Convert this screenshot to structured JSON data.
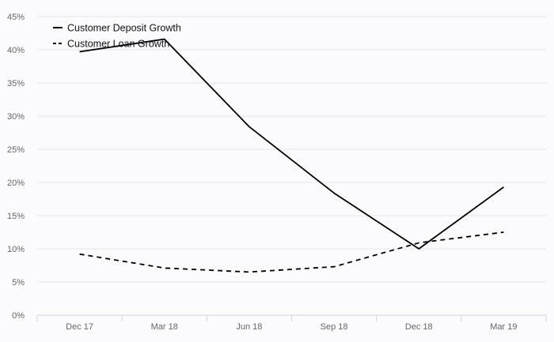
{
  "chart_data": {
    "type": "line",
    "categories": [
      "Dec 17",
      "Mar 18",
      "Jun 18",
      "Sep 18",
      "Dec 18",
      "Mar 19"
    ],
    "series": [
      {
        "name": "Customer Deposit Growth",
        "values": [
          39.7,
          41.6,
          28.4,
          18.4,
          10.0,
          19.3
        ],
        "style": "solid",
        "color": "#000000"
      },
      {
        "name": "Customer Loan Growth",
        "values": [
          9.2,
          7.1,
          6.5,
          7.3,
          10.9,
          12.5
        ],
        "style": "dashed",
        "color": "#000000"
      }
    ],
    "y_ticks": [
      "0%",
      "5%",
      "10%",
      "15%",
      "20%",
      "25%",
      "30%",
      "35%",
      "40%",
      "45%"
    ],
    "ylim": [
      0,
      45
    ],
    "y_unit": "%",
    "grid": true,
    "legend_position": "top-left",
    "colors": {
      "background": "#fbfbfd",
      "grid": "#e6e6ea",
      "axis": "#c9d3e6",
      "text": "#666666"
    }
  }
}
